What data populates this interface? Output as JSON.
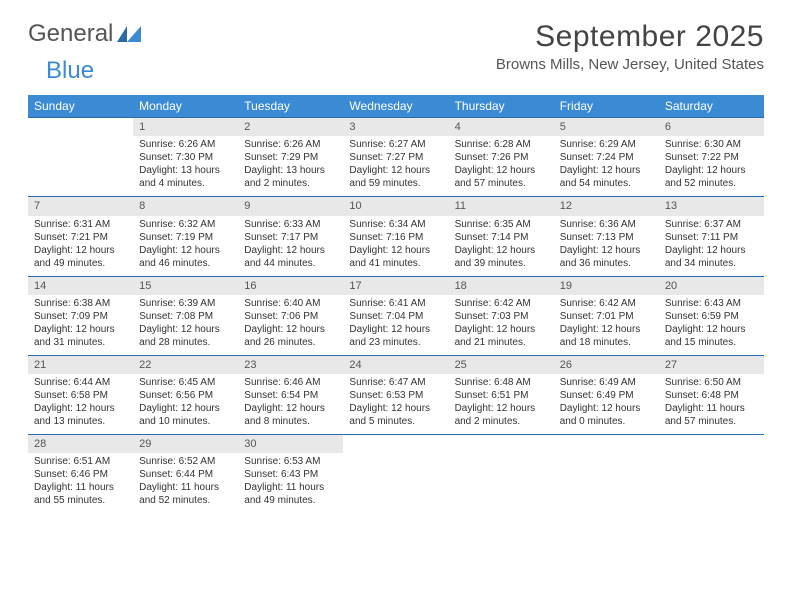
{
  "logo": {
    "text_general": "General",
    "text_blue": "Blue"
  },
  "title": "September 2025",
  "location": "Browns Mills, New Jersey, United States",
  "colors": {
    "header_bg": "#3b8bd4",
    "header_text": "#ffffff",
    "daynum_bg": "#e8e8e8",
    "week_border": "#2a6aa8",
    "body_text": "#333333"
  },
  "day_headers": [
    "Sunday",
    "Monday",
    "Tuesday",
    "Wednesday",
    "Thursday",
    "Friday",
    "Saturday"
  ],
  "weeks": [
    [
      null,
      {
        "n": "1",
        "sr": "6:26 AM",
        "ss": "7:30 PM",
        "dl": "13 hours and 4 minutes."
      },
      {
        "n": "2",
        "sr": "6:26 AM",
        "ss": "7:29 PM",
        "dl": "13 hours and 2 minutes."
      },
      {
        "n": "3",
        "sr": "6:27 AM",
        "ss": "7:27 PM",
        "dl": "12 hours and 59 minutes."
      },
      {
        "n": "4",
        "sr": "6:28 AM",
        "ss": "7:26 PM",
        "dl": "12 hours and 57 minutes."
      },
      {
        "n": "5",
        "sr": "6:29 AM",
        "ss": "7:24 PM",
        "dl": "12 hours and 54 minutes."
      },
      {
        "n": "6",
        "sr": "6:30 AM",
        "ss": "7:22 PM",
        "dl": "12 hours and 52 minutes."
      }
    ],
    [
      {
        "n": "7",
        "sr": "6:31 AM",
        "ss": "7:21 PM",
        "dl": "12 hours and 49 minutes."
      },
      {
        "n": "8",
        "sr": "6:32 AM",
        "ss": "7:19 PM",
        "dl": "12 hours and 46 minutes."
      },
      {
        "n": "9",
        "sr": "6:33 AM",
        "ss": "7:17 PM",
        "dl": "12 hours and 44 minutes."
      },
      {
        "n": "10",
        "sr": "6:34 AM",
        "ss": "7:16 PM",
        "dl": "12 hours and 41 minutes."
      },
      {
        "n": "11",
        "sr": "6:35 AM",
        "ss": "7:14 PM",
        "dl": "12 hours and 39 minutes."
      },
      {
        "n": "12",
        "sr": "6:36 AM",
        "ss": "7:13 PM",
        "dl": "12 hours and 36 minutes."
      },
      {
        "n": "13",
        "sr": "6:37 AM",
        "ss": "7:11 PM",
        "dl": "12 hours and 34 minutes."
      }
    ],
    [
      {
        "n": "14",
        "sr": "6:38 AM",
        "ss": "7:09 PM",
        "dl": "12 hours and 31 minutes."
      },
      {
        "n": "15",
        "sr": "6:39 AM",
        "ss": "7:08 PM",
        "dl": "12 hours and 28 minutes."
      },
      {
        "n": "16",
        "sr": "6:40 AM",
        "ss": "7:06 PM",
        "dl": "12 hours and 26 minutes."
      },
      {
        "n": "17",
        "sr": "6:41 AM",
        "ss": "7:04 PM",
        "dl": "12 hours and 23 minutes."
      },
      {
        "n": "18",
        "sr": "6:42 AM",
        "ss": "7:03 PM",
        "dl": "12 hours and 21 minutes."
      },
      {
        "n": "19",
        "sr": "6:42 AM",
        "ss": "7:01 PM",
        "dl": "12 hours and 18 minutes."
      },
      {
        "n": "20",
        "sr": "6:43 AM",
        "ss": "6:59 PM",
        "dl": "12 hours and 15 minutes."
      }
    ],
    [
      {
        "n": "21",
        "sr": "6:44 AM",
        "ss": "6:58 PM",
        "dl": "12 hours and 13 minutes."
      },
      {
        "n": "22",
        "sr": "6:45 AM",
        "ss": "6:56 PM",
        "dl": "12 hours and 10 minutes."
      },
      {
        "n": "23",
        "sr": "6:46 AM",
        "ss": "6:54 PM",
        "dl": "12 hours and 8 minutes."
      },
      {
        "n": "24",
        "sr": "6:47 AM",
        "ss": "6:53 PM",
        "dl": "12 hours and 5 minutes."
      },
      {
        "n": "25",
        "sr": "6:48 AM",
        "ss": "6:51 PM",
        "dl": "12 hours and 2 minutes."
      },
      {
        "n": "26",
        "sr": "6:49 AM",
        "ss": "6:49 PM",
        "dl": "12 hours and 0 minutes."
      },
      {
        "n": "27",
        "sr": "6:50 AM",
        "ss": "6:48 PM",
        "dl": "11 hours and 57 minutes."
      }
    ],
    [
      {
        "n": "28",
        "sr": "6:51 AM",
        "ss": "6:46 PM",
        "dl": "11 hours and 55 minutes."
      },
      {
        "n": "29",
        "sr": "6:52 AM",
        "ss": "6:44 PM",
        "dl": "11 hours and 52 minutes."
      },
      {
        "n": "30",
        "sr": "6:53 AM",
        "ss": "6:43 PM",
        "dl": "11 hours and 49 minutes."
      },
      null,
      null,
      null,
      null
    ]
  ],
  "labels": {
    "sunrise_prefix": "Sunrise: ",
    "sunset_prefix": "Sunset: ",
    "daylight_prefix": "Daylight: "
  }
}
